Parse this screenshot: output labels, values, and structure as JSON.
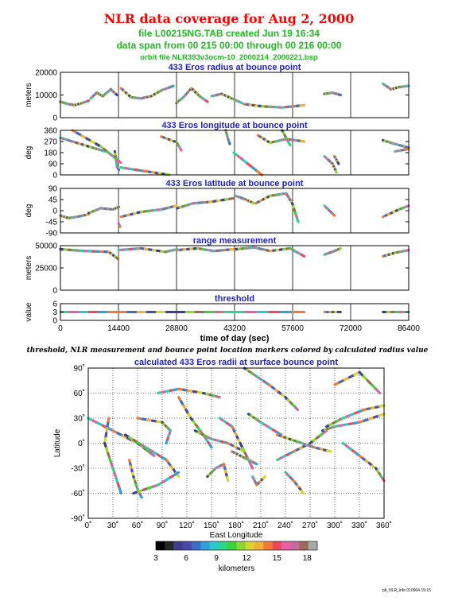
{
  "header": {
    "title": "NLR data coverage for Aug 2, 2000",
    "file_line": "file L00215NG.TAB created Jun 19 16:34",
    "span_line": "data span from 00 215 00:00 through 00 216 00:00",
    "orbit_line": "orbit file NLR393v3ocm-10_2000214_2000221.bsp",
    "title_color": "#ff0000",
    "subtitle_color": "#21b821"
  },
  "caption": "threshold, NLR measurement and bounce point location markers colored by calculated radius value",
  "footer": "plt_NLR_info 010904 15:15",
  "chart_data": [
    {
      "type": "scatter",
      "title": "433 Eros radius at bounce point",
      "ylabel": "meters",
      "ylim": [
        0,
        20000
      ],
      "yticks": [
        "0",
        "10000",
        "20000"
      ],
      "xlim": [
        0,
        86400
      ],
      "xticks": [
        "0",
        "14400",
        "28800",
        "43200",
        "57600",
        "72000",
        "86400"
      ],
      "segments": [
        {
          "x": [
            0,
            2000,
            3500,
            5500,
            7000
          ],
          "y": [
            7000,
            6000,
            5500,
            6500,
            7500
          ]
        },
        {
          "x": [
            7500,
            9000,
            10500,
            12500,
            14000
          ],
          "y": [
            8500,
            11000,
            9500,
            12500,
            10000
          ]
        },
        {
          "x": [
            15000,
            17500,
            20000,
            22500,
            25000,
            28000
          ],
          "y": [
            13000,
            9000,
            8500,
            9500,
            12000,
            14000
          ]
        },
        {
          "x": [
            28800,
            30500,
            32500,
            34500,
            36500
          ],
          "y": [
            6500,
            9000,
            13000,
            9500,
            7000
          ]
        },
        {
          "x": [
            37500,
            40000,
            42500,
            45000
          ],
          "y": [
            9500,
            10500,
            8500,
            6500
          ]
        },
        {
          "x": [
            45500,
            50000,
            55000,
            60500
          ],
          "y": [
            6000,
            5000,
            4500,
            5500
          ]
        },
        {
          "x": [
            65500,
            67500,
            69500
          ],
          "y": [
            10500,
            11000,
            10000
          ]
        },
        {
          "x": [
            80000,
            82000,
            84000,
            86400
          ],
          "y": [
            15000,
            12500,
            13500,
            14000
          ]
        }
      ]
    },
    {
      "type": "scatter",
      "title": "433 Eros longitude at bounce point",
      "ylabel": "deg",
      "ylim": [
        0,
        360
      ],
      "yticks": [
        "0",
        "90",
        "180",
        "270",
        "360"
      ],
      "xlim": [
        0,
        86400
      ],
      "xticks": [
        "0",
        "14400",
        "28800",
        "43200",
        "57600",
        "72000",
        "86400"
      ],
      "segments": [
        {
          "x": [
            0,
            4000,
            8000,
            11000
          ],
          "y": [
            300,
            260,
            220,
            190
          ]
        },
        {
          "x": [
            3000,
            10000,
            15000
          ],
          "y": [
            360,
            230,
            100
          ]
        },
        {
          "x": [
            13500,
            14000,
            14500
          ],
          "y": [
            190,
            70,
            40
          ]
        },
        {
          "x": [
            15000,
            22000,
            27000
          ],
          "y": [
            60,
            25,
            0
          ]
        },
        {
          "x": [
            25000,
            28800,
            30000
          ],
          "y": [
            310,
            265,
            200
          ]
        },
        {
          "x": [
            41000,
            41500,
            42000
          ],
          "y": [
            360,
            300,
            250
          ]
        },
        {
          "x": [
            43000,
            50000
          ],
          "y": [
            180,
            0
          ]
        },
        {
          "x": [
            49000,
            52000,
            56000,
            60500
          ],
          "y": [
            320,
            260,
            290,
            270
          ]
        },
        {
          "x": [
            55000,
            57000
          ],
          "y": [
            360,
            240
          ]
        },
        {
          "x": [
            65500,
            67500,
            68500
          ],
          "y": [
            150,
            90,
            20
          ]
        },
        {
          "x": [
            68000,
            69000
          ],
          "y": [
            150,
            90
          ]
        },
        {
          "x": [
            80000,
            83000,
            86400
          ],
          "y": [
            280,
            250,
            220
          ]
        },
        {
          "x": [
            83000,
            86400
          ],
          "y": [
            190,
            210
          ]
        }
      ]
    },
    {
      "type": "scatter",
      "title": "433 Eros latitude at bounce point",
      "ylabel": "deg",
      "ylim": [
        -90,
        90
      ],
      "yticks": [
        "-90",
        "-45",
        "0",
        "45",
        "90"
      ],
      "xlim": [
        0,
        86400
      ],
      "xticks": [
        "0",
        "14400",
        "28800",
        "43200",
        "57600",
        "72000",
        "86400"
      ],
      "segments": [
        {
          "x": [
            0,
            2000,
            4000,
            7000
          ],
          "y": [
            -20,
            -30,
            -25,
            -15
          ]
        },
        {
          "x": [
            7000,
            10000,
            13000,
            14500
          ],
          "y": [
            -10,
            10,
            5,
            15
          ]
        },
        {
          "x": [
            14400,
            14800
          ],
          "y": [
            -50,
            -65
          ]
        },
        {
          "x": [
            15000,
            20000,
            25000,
            28800
          ],
          "y": [
            -25,
            -5,
            5,
            20
          ]
        },
        {
          "x": [
            29000,
            33000,
            37000,
            43000
          ],
          "y": [
            10,
            30,
            35,
            50
          ]
        },
        {
          "x": [
            43500,
            46000,
            48000
          ],
          "y": [
            60,
            45,
            30
          ]
        },
        {
          "x": [
            48500,
            52000,
            56000,
            57500
          ],
          "y": [
            30,
            60,
            70,
            30
          ]
        },
        {
          "x": [
            57500,
            59000
          ],
          "y": [
            30,
            -45
          ]
        },
        {
          "x": [
            65500,
            68000
          ],
          "y": [
            20,
            -20
          ]
        },
        {
          "x": [
            80000,
            84000,
            86400
          ],
          "y": [
            -25,
            5,
            20
          ]
        }
      ]
    },
    {
      "type": "scatter",
      "title": "range measurement",
      "ylabel": "meters",
      "ylim": [
        0,
        50000
      ],
      "yticks": [
        "0",
        "25000",
        "50000"
      ],
      "xlim": [
        0,
        86400
      ],
      "xticks": [
        "0",
        "14400",
        "28800",
        "43200",
        "57600",
        "72000",
        "86400"
      ],
      "segments": [
        {
          "x": [
            0,
            6000,
            12000,
            14300
          ],
          "y": [
            46000,
            44000,
            43000,
            35000
          ]
        },
        {
          "x": [
            14400,
            20000,
            26000,
            29000
          ],
          "y": [
            45000,
            47000,
            43000,
            46000
          ]
        },
        {
          "x": [
            29000,
            34000,
            38000,
            43000
          ],
          "y": [
            45000,
            47000,
            44000,
            46000
          ]
        },
        {
          "x": [
            43500,
            48000,
            52000,
            57000,
            60500
          ],
          "y": [
            46000,
            48000,
            44000,
            47000,
            38000
          ]
        },
        {
          "x": [
            65500,
            68000,
            69500
          ],
          "y": [
            40000,
            44000,
            47000
          ]
        },
        {
          "x": [
            80000,
            83000,
            86400
          ],
          "y": [
            38000,
            42000,
            45000
          ]
        }
      ]
    },
    {
      "type": "scatter",
      "title": "threshold",
      "ylabel": "value",
      "ylim": [
        0,
        6
      ],
      "yticks": [
        "0",
        "3",
        "6"
      ],
      "xlabel": "time of day (sec)",
      "xlim": [
        0,
        86400
      ],
      "xticks": [
        "0",
        "14400",
        "28800",
        "43200",
        "57600",
        "72000",
        "86400"
      ],
      "segments": [
        {
          "x": [
            0,
            14300
          ],
          "y": [
            3,
            3
          ]
        },
        {
          "x": [
            14400,
            28700
          ],
          "y": [
            3,
            3
          ]
        },
        {
          "x": [
            28800,
            43100
          ],
          "y": [
            3,
            3
          ]
        },
        {
          "x": [
            43200,
            60500
          ],
          "y": [
            3,
            3
          ]
        },
        {
          "x": [
            65500,
            69500
          ],
          "y": [
            3,
            3
          ]
        },
        {
          "x": [
            80000,
            86400
          ],
          "y": [
            3,
            3
          ]
        }
      ]
    },
    {
      "type": "scatter",
      "title": "calculated 433 Eros radii at surface bounce point",
      "xlabel": "East Longitude",
      "ylabel": "Latitude",
      "xlim": [
        0,
        360
      ],
      "ylim": [
        -90,
        90
      ],
      "xticks": [
        "0˚",
        "30˚",
        "60˚",
        "90˚",
        "120˚",
        "150˚",
        "180˚",
        "210˚",
        "240˚",
        "270˚",
        "300˚",
        "330˚",
        "360˚"
      ],
      "yticks": [
        "-90˚",
        "-60˚",
        "-30˚",
        "0˚",
        "30˚",
        "60˚",
        "90˚"
      ],
      "grid": true,
      "segments": [
        {
          "x": [
            190,
            205,
            220,
            240,
            255
          ],
          "y": [
            90,
            80,
            70,
            55,
            40
          ]
        },
        {
          "x": [
            0,
            30,
            60,
            80
          ],
          "y": [
            30,
            15,
            0,
            -15
          ]
        },
        {
          "x": [
            60,
            90,
            100,
            95
          ],
          "y": [
            30,
            25,
            15,
            0
          ]
        },
        {
          "x": [
            45,
            70,
            95,
            110
          ],
          "y": [
            10,
            -5,
            -20,
            -40
          ]
        },
        {
          "x": [
            85,
            110,
            140,
            160
          ],
          "y": [
            60,
            65,
            60,
            55
          ]
        },
        {
          "x": [
            110,
            125,
            140,
            150
          ],
          "y": [
            55,
            30,
            10,
            -5
          ]
        },
        {
          "x": [
            130,
            150,
            170,
            190
          ],
          "y": [
            15,
            5,
            0,
            -10
          ]
        },
        {
          "x": [
            160,
            175,
            185,
            200
          ],
          "y": [
            30,
            20,
            0,
            -30
          ]
        },
        {
          "x": [
            175,
            185,
            195,
            205
          ],
          "y": [
            -10,
            -15,
            -20,
            -25
          ]
        },
        {
          "x": [
            195,
            210,
            235
          ],
          "y": [
            35,
            25,
            10
          ]
        },
        {
          "x": [
            230,
            250,
            270,
            290
          ],
          "y": [
            -20,
            -10,
            0,
            15
          ]
        },
        {
          "x": [
            230,
            245,
            260,
            275,
            295
          ],
          "y": [
            10,
            5,
            0,
            -5,
            -10
          ]
        },
        {
          "x": [
            285,
            300,
            330,
            360
          ],
          "y": [
            15,
            20,
            25,
            35
          ]
        },
        {
          "x": [
            310,
            330,
            350,
            360
          ],
          "y": [
            0,
            -15,
            -30,
            -45
          ]
        },
        {
          "x": [
            300,
            330,
            355
          ],
          "y": [
            70,
            85,
            60
          ]
        },
        {
          "x": [
            290,
            310,
            335,
            360
          ],
          "y": [
            20,
            30,
            40,
            45
          ]
        },
        {
          "x": [
            240,
            250,
            262
          ],
          "y": [
            -35,
            -45,
            -60
          ]
        },
        {
          "x": [
            25,
            20,
            30,
            40
          ],
          "y": [
            30,
            0,
            -30,
            -60
          ]
        },
        {
          "x": [
            145,
            155,
            165,
            170
          ],
          "y": [
            -40,
            -30,
            -25,
            -45
          ]
        },
        {
          "x": [
            200,
            205,
            215
          ],
          "y": [
            -40,
            -50,
            -40
          ]
        },
        {
          "x": [
            50,
            55,
            60,
            65
          ],
          "y": [
            -20,
            -40,
            -55,
            -65
          ]
        },
        {
          "x": [
            55,
            85,
            110
          ],
          "y": [
            -60,
            -50,
            -35
          ]
        }
      ]
    },
    {
      "type": "colorbar",
      "label": "kilometers",
      "range": [
        3,
        19
      ],
      "ticks": [
        "3",
        "6",
        "9",
        "12",
        "15",
        "18"
      ],
      "colors": [
        "#000000",
        "#262626",
        "#3e3e8c",
        "#4a4aa8",
        "#3e6ec4",
        "#2fa0d8",
        "#2bc9c9",
        "#2ed48c",
        "#3cd23c",
        "#8ed635",
        "#d6d631",
        "#f0b038",
        "#f07a38",
        "#ec4a5a",
        "#e85ca8",
        "#c86aa0",
        "#9c6a5a",
        "#a8a8a8"
      ]
    }
  ]
}
